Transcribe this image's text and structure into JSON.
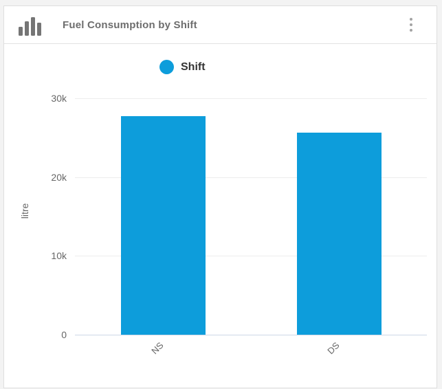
{
  "header": {
    "title": "Fuel Consumption by Shift",
    "icon": "bar-chart-icon",
    "menu_icon": "kebab-menu-icon"
  },
  "legend": {
    "label": "Shift",
    "marker_color": "#0d9ddb"
  },
  "colors": {
    "bar": "#0d9ddb",
    "gridline": "#ededed",
    "axis_line": "#ccd7e6",
    "axis_text": "#666666",
    "title_text": "#6d6d6d"
  },
  "chart_data": {
    "type": "bar",
    "title": "Fuel Consumption by Shift",
    "categories": [
      "NS",
      "DS"
    ],
    "series": [
      {
        "name": "Shift",
        "values": [
          27700,
          25600
        ],
        "color": "#0d9ddb"
      }
    ],
    "xlabel": "",
    "ylabel": "litre",
    "ylim": [
      0,
      30000
    ],
    "yticks": [
      {
        "label": "0",
        "value": 0
      },
      {
        "label": "10k",
        "value": 10000
      },
      {
        "label": "20k",
        "value": 20000
      },
      {
        "label": "30k",
        "value": 30000
      }
    ],
    "grid": true,
    "legend_position": "top",
    "bar_width_ratio": 0.48,
    "x_label_rotation": -45
  }
}
